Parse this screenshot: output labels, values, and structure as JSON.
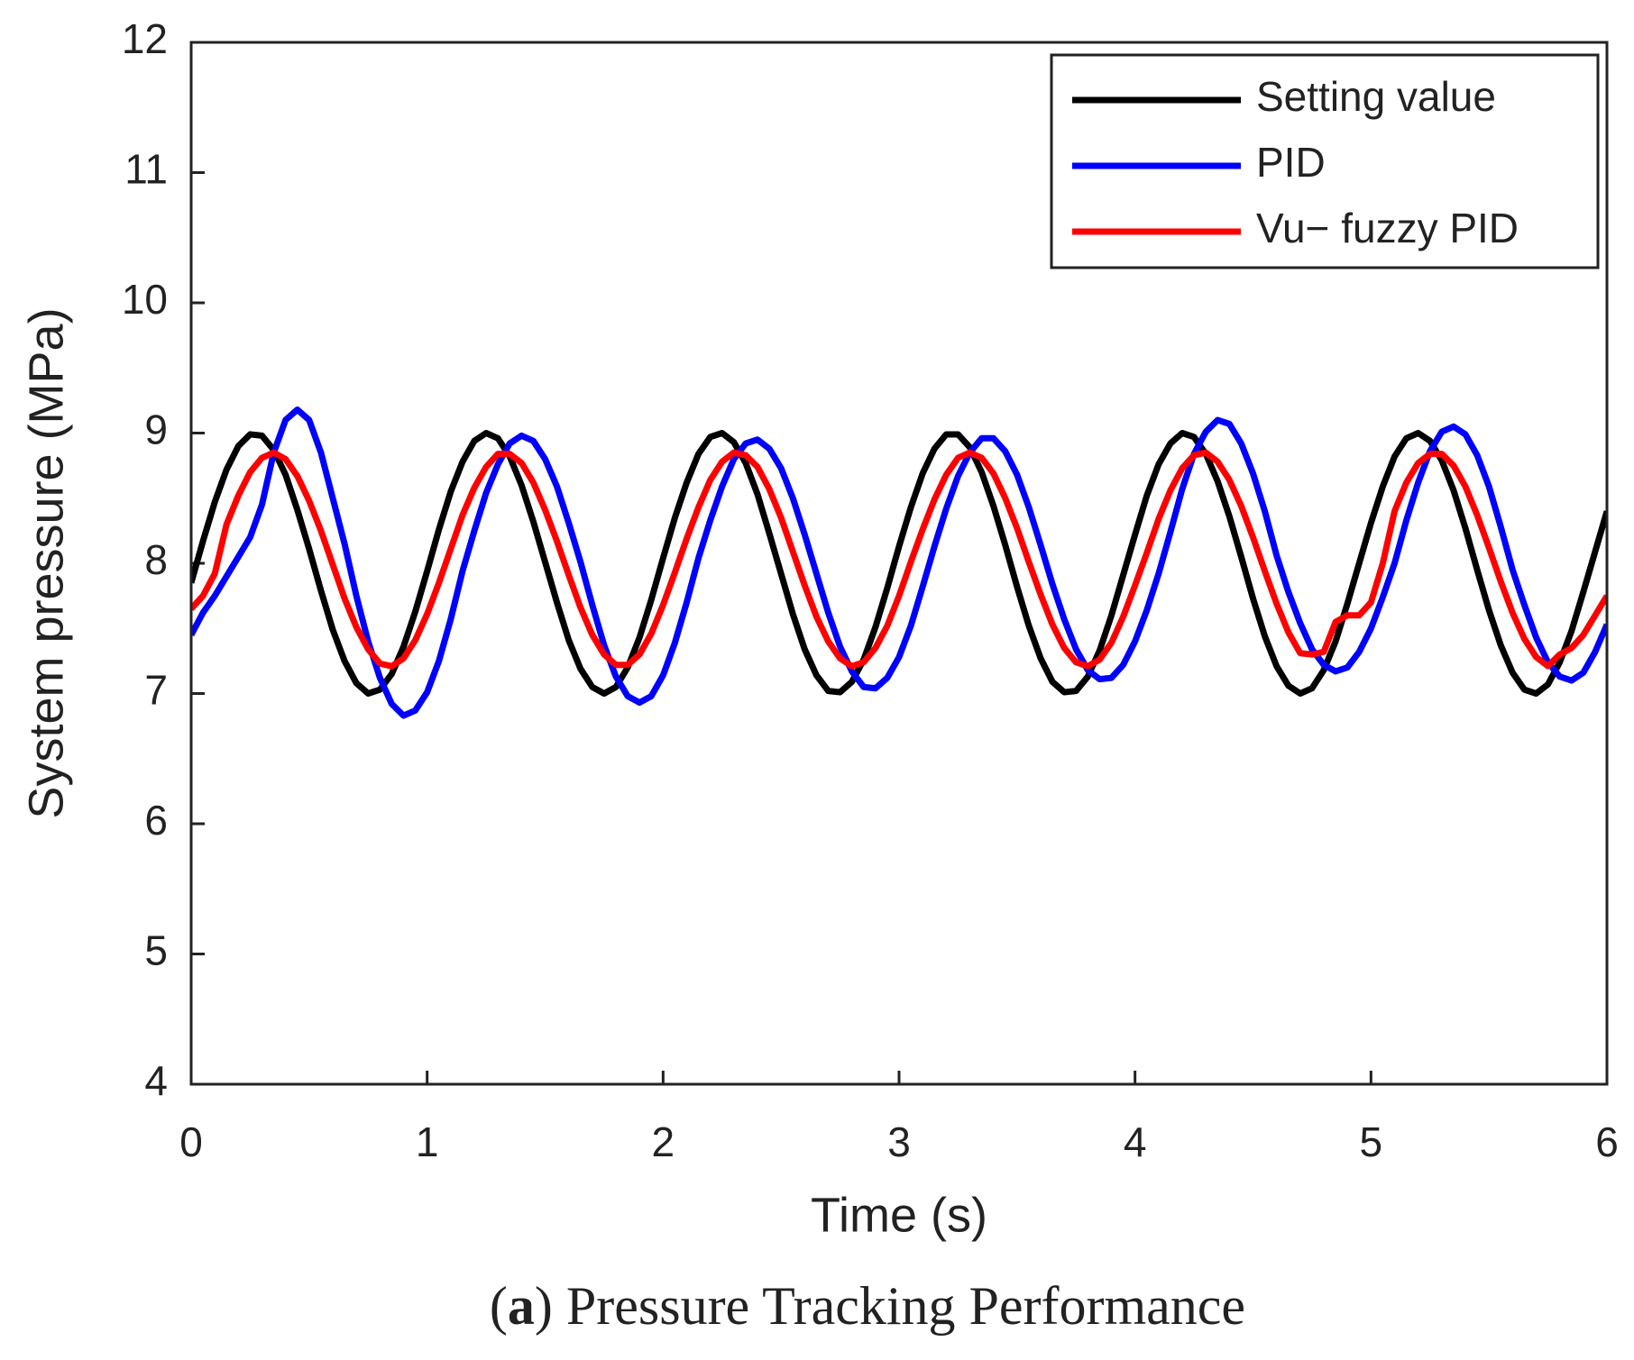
{
  "chart_data": {
    "type": "line",
    "xlabel": "Time (s)",
    "ylabel": "System pressure (MPa)",
    "caption": [
      "(",
      "a",
      ") Pressure Tracking Performance"
    ],
    "x": [
      0,
      0.05,
      0.1,
      0.15,
      0.2,
      0.25,
      0.3,
      0.35,
      0.4,
      0.45,
      0.5,
      0.55,
      0.6,
      0.65,
      0.7,
      0.75,
      0.8,
      0.85,
      0.9,
      0.95,
      1,
      1.05,
      1.1,
      1.15,
      1.2,
      1.25,
      1.3,
      1.35,
      1.4,
      1.45,
      1.5,
      1.55,
      1.6,
      1.65,
      1.7,
      1.75,
      1.8,
      1.85,
      1.9,
      1.95,
      2,
      2.05,
      2.1,
      2.15,
      2.2,
      2.25,
      2.3,
      2.35,
      2.4,
      2.45,
      2.5,
      2.55,
      2.6,
      2.65,
      2.7,
      2.75,
      2.8,
      2.85,
      2.9,
      2.95,
      3,
      3.05,
      3.1,
      3.15,
      3.2,
      3.25,
      3.3,
      3.35,
      3.4,
      3.45,
      3.5,
      3.55,
      3.6,
      3.65,
      3.7,
      3.75,
      3.8,
      3.85,
      3.9,
      3.95,
      4,
      4.05,
      4.1,
      4.15,
      4.2,
      4.25,
      4.3,
      4.35,
      4.4,
      4.45,
      4.5,
      4.55,
      4.6,
      4.65,
      4.7,
      4.75,
      4.8,
      4.85,
      4.9,
      4.95,
      5,
      5.05,
      5.1,
      5.15,
      5.2,
      5.25,
      5.3,
      5.35,
      5.4,
      5.45,
      5.5,
      5.55,
      5.6,
      5.65,
      5.7,
      5.75,
      5.8,
      5.85,
      5.9,
      5.95,
      6
    ],
    "series": [
      {
        "name": "Setting value",
        "color": "#000000",
        "values": [
          7.85,
          8.17,
          8.47,
          8.72,
          8.9,
          8.99,
          8.98,
          8.87,
          8.68,
          8.41,
          8.11,
          7.79,
          7.49,
          7.25,
          7.08,
          7.0,
          7.03,
          7.15,
          7.36,
          7.63,
          7.94,
          8.26,
          8.55,
          8.78,
          8.94,
          9.0,
          8.96,
          8.82,
          8.6,
          8.32,
          8.01,
          7.7,
          7.41,
          7.19,
          7.05,
          7.0,
          7.05,
          7.2,
          7.43,
          7.72,
          8.04,
          8.35,
          8.62,
          8.84,
          8.97,
          9.0,
          8.93,
          8.77,
          8.53,
          8.23,
          7.92,
          7.61,
          7.34,
          7.14,
          7.02,
          7.01,
          7.09,
          7.26,
          7.51,
          7.81,
          8.13,
          8.43,
          8.69,
          8.88,
          8.99,
          8.99,
          8.89,
          8.7,
          8.44,
          8.14,
          7.82,
          7.52,
          7.27,
          7.09,
          7.01,
          7.02,
          7.13,
          7.33,
          7.6,
          7.91,
          8.22,
          8.52,
          8.76,
          8.92,
          9.0,
          8.97,
          8.84,
          8.63,
          8.36,
          8.05,
          7.73,
          7.44,
          7.21,
          7.06,
          7.0,
          7.04,
          7.18,
          7.4,
          7.69,
          8.0,
          8.31,
          8.59,
          8.82,
          8.96,
          9.0,
          8.94,
          8.79,
          8.56,
          8.27,
          7.95,
          7.64,
          7.37,
          7.16,
          7.03,
          7.0,
          7.07,
          7.24,
          7.48,
          7.78,
          8.09,
          8.4
        ]
      },
      {
        "name": "PID",
        "color": "#0000ff",
        "values": [
          7.45,
          7.62,
          7.75,
          7.9,
          8.05,
          8.2,
          8.45,
          8.85,
          9.1,
          9.18,
          9.1,
          8.85,
          8.5,
          8.15,
          7.75,
          7.4,
          7.12,
          6.92,
          6.83,
          6.87,
          7.01,
          7.25,
          7.57,
          7.94,
          8.25,
          8.54,
          8.76,
          8.92,
          8.98,
          8.94,
          8.8,
          8.59,
          8.31,
          8.01,
          7.68,
          7.37,
          7.13,
          6.98,
          6.93,
          6.98,
          7.14,
          7.39,
          7.7,
          8.04,
          8.33,
          8.59,
          8.8,
          8.92,
          8.95,
          8.88,
          8.73,
          8.5,
          8.22,
          7.92,
          7.62,
          7.36,
          7.17,
          7.05,
          7.04,
          7.12,
          7.28,
          7.52,
          7.82,
          8.13,
          8.42,
          8.67,
          8.85,
          8.96,
          8.96,
          8.86,
          8.68,
          8.43,
          8.14,
          7.84,
          7.57,
          7.34,
          7.18,
          7.11,
          7.12,
          7.22,
          7.4,
          7.64,
          7.92,
          8.24,
          8.57,
          8.84,
          9.01,
          9.1,
          9.07,
          8.92,
          8.69,
          8.4,
          8.06,
          7.78,
          7.54,
          7.34,
          7.22,
          7.17,
          7.2,
          7.32,
          7.5,
          7.74,
          8.0,
          8.33,
          8.62,
          8.86,
          9.01,
          9.05,
          8.99,
          8.83,
          8.59,
          8.28,
          7.95,
          7.68,
          7.43,
          7.24,
          7.13,
          7.1,
          7.16,
          7.32,
          7.53
        ]
      },
      {
        "name": "Vu− fuzzy PID",
        "color": "#ff0000",
        "values": [
          7.65,
          7.75,
          7.92,
          8.3,
          8.52,
          8.7,
          8.81,
          8.85,
          8.8,
          8.67,
          8.48,
          8.25,
          7.99,
          7.73,
          7.51,
          7.34,
          7.23,
          7.21,
          7.27,
          7.41,
          7.61,
          7.85,
          8.11,
          8.37,
          8.58,
          8.74,
          8.84,
          8.84,
          8.77,
          8.62,
          8.41,
          8.17,
          7.91,
          7.66,
          7.45,
          7.3,
          7.22,
          7.22,
          7.3,
          7.46,
          7.68,
          7.93,
          8.19,
          8.43,
          8.64,
          8.78,
          8.85,
          8.83,
          8.74,
          8.57,
          8.35,
          8.09,
          7.83,
          7.59,
          7.4,
          7.27,
          7.21,
          7.24,
          7.35,
          7.52,
          7.75,
          8.01,
          8.26,
          8.49,
          8.68,
          8.81,
          8.85,
          8.81,
          8.69,
          8.5,
          8.27,
          8.01,
          7.76,
          7.53,
          7.35,
          7.24,
          7.21,
          7.26,
          7.39,
          7.59,
          7.83,
          8.08,
          8.34,
          8.56,
          8.73,
          8.83,
          8.85,
          8.78,
          8.64,
          8.44,
          8.2,
          7.94,
          7.69,
          7.47,
          7.31,
          7.3,
          7.32,
          7.55,
          7.6,
          7.6,
          7.7,
          8.0,
          8.4,
          8.62,
          8.77,
          8.84,
          8.84,
          8.75,
          8.59,
          8.37,
          8.12,
          7.86,
          7.62,
          7.42,
          7.28,
          7.21,
          7.3,
          7.35,
          7.45,
          7.6,
          7.75
        ]
      }
    ],
    "xlim": [
      0,
      6
    ],
    "xticks": [
      0,
      1,
      2,
      3,
      4,
      5,
      6
    ],
    "ylim": [
      4,
      12
    ],
    "yticks": [
      4,
      5,
      6,
      7,
      8,
      9,
      10,
      11,
      12
    ],
    "legend": "upper right",
    "grid": false
  }
}
